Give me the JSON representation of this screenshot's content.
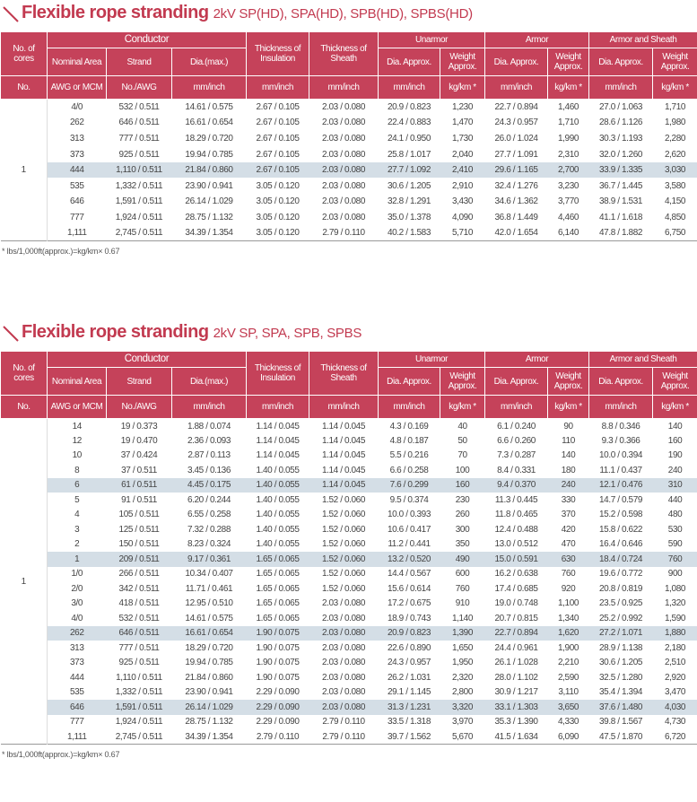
{
  "tables": [
    {
      "title": "Flexible rope stranding",
      "subtitle": "2kV SP(HD), SPA(HD), SPB(HD), SPBS(HD)",
      "header": {
        "no_of_cores": "No. of cores",
        "no": "No.",
        "conductor": "Conductor",
        "sub": [
          "Nominal Area",
          "Strand",
          "Dia.(max.)"
        ],
        "units": [
          "AWG or MCM",
          "No./AWG",
          "mm/inch",
          "mm/inch",
          "mm/inch"
        ],
        "insulation": "Thickness of Insulation",
        "sheath": "Thickness of Sheath",
        "groups": [
          {
            "name": "Unarmor",
            "dia": "Dia. Approx.",
            "weight": "Weight Approx.",
            "dia_unit": "mm/inch",
            "weight_unit": "kg/km *"
          },
          {
            "name": "Armor",
            "dia": "Dia. Approx.",
            "weight": "Weight Approx.",
            "dia_unit": "mm/inch",
            "weight_unit": "kg/km *"
          },
          {
            "name": "Armor and Sheath",
            "dia": "Dia. Approx.",
            "weight": "Weight Approx.",
            "dia_unit": "mm/inch",
            "weight_unit": "kg/km *"
          }
        ]
      },
      "cores": "1",
      "highlight_rows": [
        4
      ],
      "rows": [
        [
          "4/0",
          "532 / 0.511",
          "14.61 / 0.575",
          "2.67 / 0.105",
          "2.03 / 0.080",
          "20.9 / 0.823",
          "1,230",
          "22.7 / 0.894",
          "1,460",
          "27.0 / 1.063",
          "1,710"
        ],
        [
          "262",
          "646 / 0.511",
          "16.61 / 0.654",
          "2.67 / 0.105",
          "2.03 / 0.080",
          "22.4 / 0.883",
          "1,470",
          "24.3 / 0.957",
          "1,710",
          "28.6 / 1.126",
          "1,980"
        ],
        [
          "313",
          "777 / 0.511",
          "18.29 / 0.720",
          "2.67 / 0.105",
          "2.03 / 0.080",
          "24.1 / 0.950",
          "1,730",
          "26.0 / 1.024",
          "1,990",
          "30.3 / 1.193",
          "2,280"
        ],
        [
          "373",
          "925 / 0.511",
          "19.94 / 0.785",
          "2.67 / 0.105",
          "2.03 / 0.080",
          "25.8 / 1.017",
          "2,040",
          "27.7 / 1.091",
          "2,310",
          "32.0 / 1.260",
          "2,620"
        ],
        [
          "444",
          "1,110 / 0.511",
          "21.84 / 0.860",
          "2.67 / 0.105",
          "2.03 / 0.080",
          "27.7 / 1.092",
          "2,410",
          "29.6 / 1.165",
          "2,700",
          "33.9 / 1.335",
          "3,030"
        ],
        [
          "535",
          "1,332 / 0.511",
          "23.90 / 0.941",
          "3.05 / 0.120",
          "2.03 / 0.080",
          "30.6 / 1.205",
          "2,910",
          "32.4 / 1.276",
          "3,230",
          "36.7 / 1.445",
          "3,580"
        ],
        [
          "646",
          "1,591 / 0.511",
          "26.14 / 1.029",
          "3.05 / 0.120",
          "2.03 / 0.080",
          "32.8 / 1.291",
          "3,430",
          "34.6 / 1.362",
          "3,770",
          "38.9 / 1.531",
          "4,150"
        ],
        [
          "777",
          "1,924 / 0.511",
          "28.75 / 1.132",
          "3.05 / 0.120",
          "2.03 / 0.080",
          "35.0 / 1.378",
          "4,090",
          "36.8 / 1.449",
          "4,460",
          "41.1 / 1.618",
          "4,850"
        ],
        [
          "1,111",
          "2,745 / 0.511",
          "34.39 / 1.354",
          "3.05 / 0.120",
          "2.79 / 0.110",
          "40.2 / 1.583",
          "5,710",
          "42.0 / 1.654",
          "6,140",
          "47.8 / 1.882",
          "6,750"
        ]
      ],
      "note": "* lbs/1,000ft(approx.)=kg/km× 0.67"
    },
    {
      "title": "Flexible rope stranding",
      "subtitle": "2kV SP, SPA, SPB, SPBS",
      "header": {
        "no_of_cores": "No. of cores",
        "no": "No.",
        "conductor": "Conductor",
        "sub": [
          "Nominal Area",
          "Strand",
          "Dia.(max.)"
        ],
        "units": [
          "AWG or MCM",
          "No./AWG",
          "mm/inch",
          "mm/inch",
          "mm/inch"
        ],
        "insulation": "Thickness of Insulation",
        "sheath": "Thickness of Sheath",
        "groups": [
          {
            "name": "Unarmor",
            "dia": "Dia. Approx.",
            "weight": "Weight Approx.",
            "dia_unit": "mm/inch",
            "weight_unit": "kg/km *"
          },
          {
            "name": "Armor",
            "dia": "Dia. Approx.",
            "weight": "Weight Approx.",
            "dia_unit": "mm/inch",
            "weight_unit": "kg/km *"
          },
          {
            "name": "Armor and Sheath",
            "dia": "Dia. Approx.",
            "weight": "Weight Approx.",
            "dia_unit": "mm/inch",
            "weight_unit": "kg/km *"
          }
        ]
      },
      "cores": "1",
      "highlight_rows": [
        4,
        9,
        14,
        19
      ],
      "rows": [
        [
          "14",
          "19 / 0.373",
          "1.88 / 0.074",
          "1.14 / 0.045",
          "1.14 / 0.045",
          "4.3 / 0.169",
          "40",
          "6.1 / 0.240",
          "90",
          "8.8 / 0.346",
          "140"
        ],
        [
          "12",
          "19 / 0.470",
          "2.36 / 0.093",
          "1.14 / 0.045",
          "1.14 / 0.045",
          "4.8 / 0.187",
          "50",
          "6.6 / 0.260",
          "110",
          "9.3 / 0.366",
          "160"
        ],
        [
          "10",
          "37 / 0.424",
          "2.87 / 0.113",
          "1.14 / 0.045",
          "1.14 / 0.045",
          "5.5 / 0.216",
          "70",
          "7.3 / 0.287",
          "140",
          "10.0 / 0.394",
          "190"
        ],
        [
          "8",
          "37 / 0.511",
          "3.45 / 0.136",
          "1.40 / 0.055",
          "1.14 / 0.045",
          "6.6 / 0.258",
          "100",
          "8.4 / 0.331",
          "180",
          "11.1 / 0.437",
          "240"
        ],
        [
          "6",
          "61 / 0.511",
          "4.45 / 0.175",
          "1.40 / 0.055",
          "1.14 / 0.045",
          "7.6 / 0.299",
          "160",
          "9.4 / 0.370",
          "240",
          "12.1 / 0.476",
          "310"
        ],
        [
          "5",
          "91 / 0.511",
          "6.20 / 0.244",
          "1.40 / 0.055",
          "1.52 / 0.060",
          "9.5 / 0.374",
          "230",
          "11.3 / 0.445",
          "330",
          "14.7 / 0.579",
          "440"
        ],
        [
          "4",
          "105 / 0.511",
          "6.55 / 0.258",
          "1.40 / 0.055",
          "1.52 / 0.060",
          "10.0 / 0.393",
          "260",
          "11.8 / 0.465",
          "370",
          "15.2 / 0.598",
          "480"
        ],
        [
          "3",
          "125 / 0.511",
          "7.32 / 0.288",
          "1.40 / 0.055",
          "1.52 / 0.060",
          "10.6 / 0.417",
          "300",
          "12.4 / 0.488",
          "420",
          "15.8 / 0.622",
          "530"
        ],
        [
          "2",
          "150 / 0.511",
          "8.23 / 0.324",
          "1.40 / 0.055",
          "1.52 / 0.060",
          "11.2 / 0.441",
          "350",
          "13.0 / 0.512",
          "470",
          "16.4 / 0.646",
          "590"
        ],
        [
          "1",
          "209 / 0.511",
          "9.17 / 0.361",
          "1.65 / 0.065",
          "1.52 / 0.060",
          "13.2 / 0.520",
          "490",
          "15.0 / 0.591",
          "630",
          "18.4 / 0.724",
          "760"
        ],
        [
          "1/0",
          "266 / 0.511",
          "10.34 / 0.407",
          "1.65 / 0.065",
          "1.52 / 0.060",
          "14.4 / 0.567",
          "600",
          "16.2 / 0.638",
          "760",
          "19.6 / 0.772",
          "900"
        ],
        [
          "2/0",
          "342 / 0.511",
          "11.71 / 0.461",
          "1.65 / 0.065",
          "1.52 / 0.060",
          "15.6 / 0.614",
          "760",
          "17.4 / 0.685",
          "920",
          "20.8 / 0.819",
          "1,080"
        ],
        [
          "3/0",
          "418 / 0.511",
          "12.95 / 0.510",
          "1.65 / 0.065",
          "2.03 / 0.080",
          "17.2 / 0.675",
          "910",
          "19.0 / 0.748",
          "1,100",
          "23.5 / 0.925",
          "1,320"
        ],
        [
          "4/0",
          "532 / 0.511",
          "14.61 / 0.575",
          "1.65 / 0.065",
          "2.03 / 0.080",
          "18.9 / 0.743",
          "1,140",
          "20.7 / 0.815",
          "1,340",
          "25.2 / 0.992",
          "1,590"
        ],
        [
          "262",
          "646 / 0.511",
          "16.61 / 0.654",
          "1.90 / 0.075",
          "2.03 / 0.080",
          "20.9 / 0.823",
          "1,390",
          "22.7 / 0.894",
          "1,620",
          "27.2 / 1.071",
          "1,880"
        ],
        [
          "313",
          "777 / 0.511",
          "18.29 / 0.720",
          "1.90 / 0.075",
          "2.03 / 0.080",
          "22.6 / 0.890",
          "1,650",
          "24.4 / 0.961",
          "1,900",
          "28.9 / 1.138",
          "2,180"
        ],
        [
          "373",
          "925 / 0.511",
          "19.94 / 0.785",
          "1.90 / 0.075",
          "2.03 / 0.080",
          "24.3 / 0.957",
          "1,950",
          "26.1 / 1.028",
          "2,210",
          "30.6 / 1.205",
          "2,510"
        ],
        [
          "444",
          "1,110 / 0.511",
          "21.84 / 0.860",
          "1.90 / 0.075",
          "2.03 / 0.080",
          "26.2 / 1.031",
          "2,320",
          "28.0 / 1.102",
          "2,590",
          "32.5 / 1.280",
          "2,920"
        ],
        [
          "535",
          "1,332 / 0.511",
          "23.90 / 0.941",
          "2.29 / 0.090",
          "2.03 / 0.080",
          "29.1 / 1.145",
          "2,800",
          "30.9 / 1.217",
          "3,110",
          "35.4 / 1.394",
          "3,470"
        ],
        [
          "646",
          "1,591 / 0.511",
          "26.14 / 1.029",
          "2.29 / 0.090",
          "2.03 / 0.080",
          "31.3 / 1.231",
          "3,320",
          "33.1 / 1.303",
          "3,650",
          "37.6 / 1.480",
          "4,030"
        ],
        [
          "777",
          "1,924 / 0.511",
          "28.75 / 1.132",
          "2.29 / 0.090",
          "2.79 / 0.110",
          "33.5 / 1.318",
          "3,970",
          "35.3 / 1.390",
          "4,330",
          "39.8 / 1.567",
          "4,730"
        ],
        [
          "1,111",
          "2,745 / 0.511",
          "34.39 / 1.354",
          "2.79 / 0.110",
          "2.79 / 0.110",
          "39.7 / 1.562",
          "5,670",
          "41.5 / 1.634",
          "6,090",
          "47.5 / 1.870",
          "6,720"
        ]
      ],
      "note": "* lbs/1,000ft(approx.)=kg/km× 0.67"
    }
  ]
}
